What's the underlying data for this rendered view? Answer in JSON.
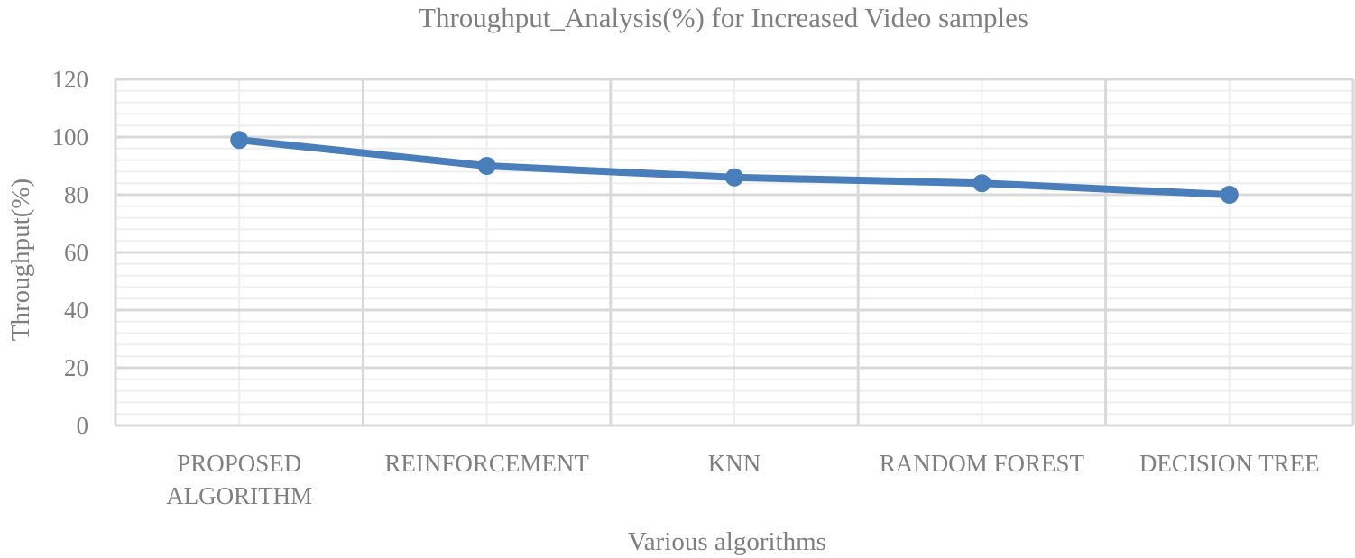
{
  "chart_data": {
    "type": "line",
    "title": "Throughput_Analysis(%)  for Increased Video samples",
    "xlabel": "Various algorithms",
    "ylabel": "Throughput(%)",
    "categories": [
      [
        "PROPOSED",
        "ALGORITHM"
      ],
      [
        "REINFORCEMENT"
      ],
      [
        "KNN"
      ],
      [
        "RANDOM FOREST"
      ],
      [
        "DECISION TREE"
      ]
    ],
    "series": [
      {
        "values": [
          99,
          90,
          86,
          84,
          80
        ],
        "color": "#4a7ebb"
      }
    ],
    "ylim": [
      0,
      120
    ],
    "yticks": [
      0,
      20,
      40,
      60,
      80,
      100,
      120
    ],
    "grid": true,
    "legend": "none"
  }
}
